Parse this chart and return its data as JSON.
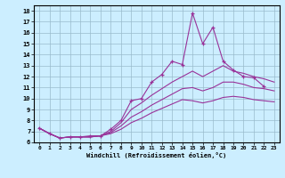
{
  "xlabel": "Windchill (Refroidissement éolien,°C)",
  "ylabel": "",
  "bg_color": "#cceeff",
  "line_color": "#993399",
  "grid_color": "#99bbcc",
  "xlim": [
    -0.5,
    23.5
  ],
  "ylim": [
    6,
    18.5
  ],
  "xticks": [
    0,
    1,
    2,
    3,
    4,
    5,
    6,
    7,
    8,
    9,
    10,
    11,
    12,
    13,
    14,
    15,
    16,
    17,
    18,
    19,
    20,
    21,
    22,
    23
  ],
  "yticks": [
    6,
    7,
    8,
    9,
    10,
    11,
    12,
    13,
    14,
    15,
    16,
    17,
    18
  ],
  "series": [
    {
      "x": [
        0,
        1,
        2,
        3,
        4,
        5,
        6,
        7,
        8,
        9,
        10,
        11,
        12,
        13,
        14,
        15,
        16,
        17,
        18,
        19,
        20,
        21,
        22
      ],
      "y": [
        7.3,
        6.8,
        6.4,
        6.5,
        6.5,
        6.6,
        6.6,
        7.2,
        8.0,
        9.8,
        10.0,
        11.5,
        12.2,
        13.4,
        13.1,
        17.8,
        15.0,
        16.5,
        13.4,
        12.6,
        12.0,
        11.9,
        11.1
      ],
      "marker": true
    },
    {
      "x": [
        0,
        1,
        2,
        3,
        4,
        5,
        6,
        7,
        8,
        9,
        10,
        11,
        12,
        13,
        14,
        15,
        16,
        17,
        18,
        19,
        20,
        21,
        22,
        23
      ],
      "y": [
        7.3,
        6.8,
        6.4,
        6.5,
        6.5,
        6.5,
        6.6,
        7.0,
        7.8,
        9.0,
        9.6,
        10.3,
        10.9,
        11.5,
        12.0,
        12.5,
        12.0,
        12.5,
        13.0,
        12.5,
        12.3,
        12.0,
        11.8,
        11.5
      ],
      "marker": false
    },
    {
      "x": [
        0,
        1,
        2,
        3,
        4,
        5,
        6,
        7,
        8,
        9,
        10,
        11,
        12,
        13,
        14,
        15,
        16,
        17,
        18,
        19,
        20,
        21,
        22,
        23
      ],
      "y": [
        7.3,
        6.8,
        6.4,
        6.5,
        6.5,
        6.5,
        6.6,
        6.9,
        7.5,
        8.3,
        8.8,
        9.4,
        9.9,
        10.4,
        10.9,
        11.0,
        10.7,
        11.0,
        11.5,
        11.5,
        11.3,
        11.0,
        10.9,
        10.7
      ],
      "marker": false
    },
    {
      "x": [
        0,
        1,
        2,
        3,
        4,
        5,
        6,
        7,
        8,
        9,
        10,
        11,
        12,
        13,
        14,
        15,
        16,
        17,
        18,
        19,
        20,
        21,
        22,
        23
      ],
      "y": [
        7.3,
        6.8,
        6.4,
        6.5,
        6.5,
        6.5,
        6.6,
        6.8,
        7.2,
        7.8,
        8.2,
        8.7,
        9.1,
        9.5,
        9.9,
        9.8,
        9.6,
        9.8,
        10.1,
        10.2,
        10.1,
        9.9,
        9.8,
        9.7
      ],
      "marker": false
    }
  ]
}
